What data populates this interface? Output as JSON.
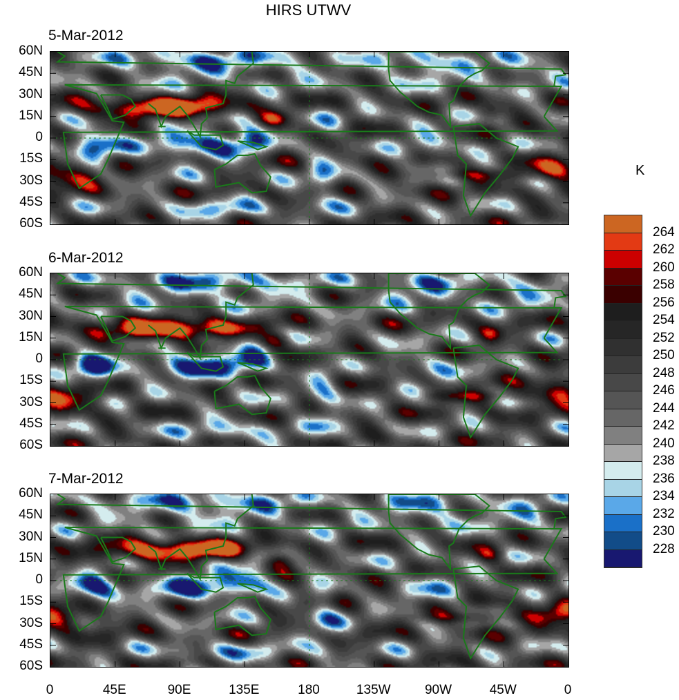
{
  "title": "HIRS UTWV",
  "units": "K",
  "panels": [
    {
      "date": "5-Mar-2012"
    },
    {
      "date": "6-Mar-2012"
    },
    {
      "date": "7-Mar-2012"
    }
  ],
  "lat_labels": [
    "60N",
    "45N",
    "30N",
    "15N",
    "0",
    "15S",
    "30S",
    "45S",
    "60S"
  ],
  "lon_labels": [
    "0",
    "45E",
    "90E",
    "135E",
    "180",
    "135W",
    "90W",
    "45W",
    "0"
  ],
  "colorbar": {
    "labels": [
      "264",
      "262",
      "260",
      "258",
      "256",
      "254",
      "252",
      "250",
      "248",
      "246",
      "244",
      "242",
      "240",
      "238",
      "236",
      "234",
      "232",
      "230",
      "228"
    ],
    "colors": [
      "#cc6622",
      "#e33a14",
      "#cc0000",
      "#5a0000",
      "#3a0000",
      "#1e1e1e",
      "#262626",
      "#303030",
      "#3c3c3c",
      "#484848",
      "#555555",
      "#666666",
      "#808080",
      "#a6a6a6",
      "#d4ecee",
      "#a8d4e6",
      "#5aa8e8",
      "#1a70c8",
      "#124c88",
      "#181870"
    ]
  },
  "coastline_color": "#1a7a1a"
}
